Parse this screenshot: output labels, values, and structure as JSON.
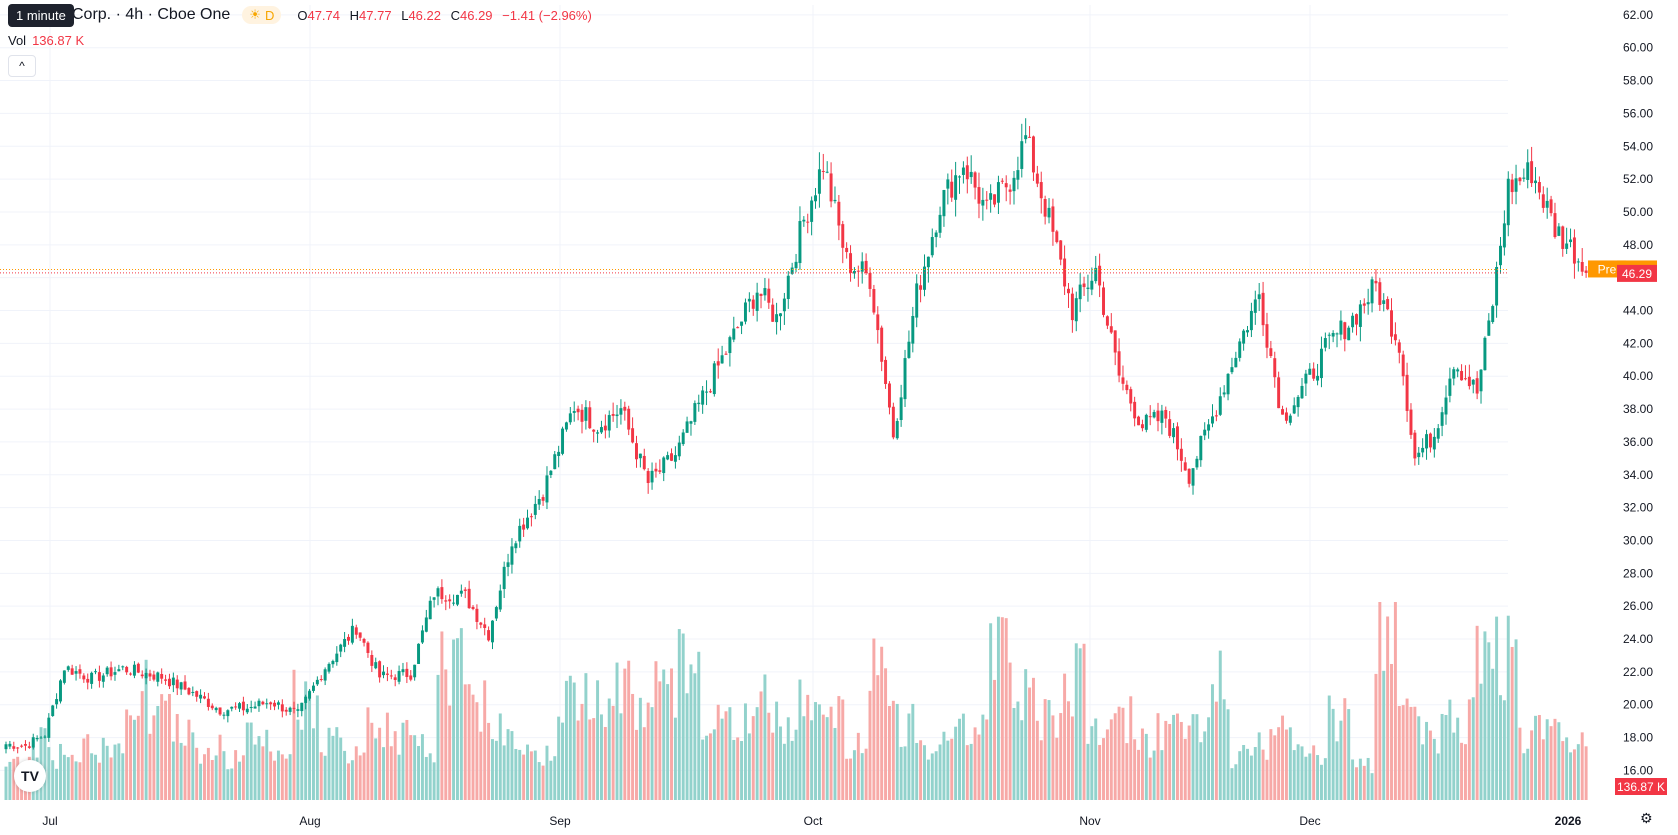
{
  "tooltip": "1 minute",
  "legend": {
    "symbol_fragment": "Corp. · 4h · Cboe One",
    "market_badge": "D",
    "ohlc": [
      {
        "k": "O",
        "v": "47.74"
      },
      {
        "k": "H",
        "v": "47.77"
      },
      {
        "k": "L",
        "v": "46.22"
      },
      {
        "k": "C",
        "v": "46.29"
      }
    ],
    "change": "−1.41 (−2.96%)"
  },
  "volume": {
    "label": "Vol",
    "value": "136.87 K",
    "axis_label": "136.87 K"
  },
  "collapse_icon": "chevron-up-icon",
  "price_axis": {
    "ticks": [
      "62.00",
      "60.00",
      "58.00",
      "56.00",
      "54.00",
      "52.00",
      "50.00",
      "48.00",
      "46.00",
      "44.00",
      "42.00",
      "40.00",
      "38.00",
      "36.00",
      "34.00",
      "32.00",
      "30.00",
      "28.00",
      "26.00",
      "24.00",
      "22.00",
      "20.00",
      "18.00",
      "16.00"
    ],
    "ylim": [
      14.2,
      62.6
    ]
  },
  "time_axis": [
    "Jul",
    "Aug",
    "Sep",
    "Oct",
    "Nov",
    "Dec",
    "2026"
  ],
  "pre_market": {
    "label": "Pre",
    "value": "46.50"
  },
  "last_price": "46.29",
  "colors": {
    "up": "#089981",
    "down": "#f23645",
    "vol_up": "#92d2cc",
    "vol_down": "#f7a9a7",
    "pre": "#ff9800"
  },
  "chart_data": {
    "type": "candlestick",
    "ylim": [
      14.2,
      62.6
    ],
    "last_close": 46.29,
    "pre_market": 46.5,
    "anchors": [
      [
        0,
        17.6
      ],
      [
        5,
        17.5
      ],
      [
        10,
        18.2
      ],
      [
        15,
        22.3
      ],
      [
        22,
        21.6
      ],
      [
        30,
        22.2
      ],
      [
        40,
        21.7
      ],
      [
        48,
        20.7
      ],
      [
        55,
        19.7
      ],
      [
        62,
        19.8
      ],
      [
        68,
        20.2
      ],
      [
        75,
        19.4
      ],
      [
        82,
        22.3
      ],
      [
        90,
        24.7
      ],
      [
        96,
        21.7
      ],
      [
        104,
        21.9
      ],
      [
        110,
        26.8
      ],
      [
        118,
        26.6
      ],
      [
        124,
        24.3
      ],
      [
        130,
        30.0
      ],
      [
        138,
        33.0
      ],
      [
        146,
        38.2
      ],
      [
        152,
        37.0
      ],
      [
        158,
        38.0
      ],
      [
        165,
        33.5
      ],
      [
        172,
        35.2
      ],
      [
        178,
        38.2
      ],
      [
        186,
        42.0
      ],
      [
        193,
        45.3
      ],
      [
        198,
        43.5
      ],
      [
        205,
        49.5
      ],
      [
        210,
        53.0
      ],
      [
        216,
        47.0
      ],
      [
        222,
        46.0
      ],
      [
        228,
        36.5
      ],
      [
        234,
        45.0
      ],
      [
        240,
        50.5
      ],
      [
        246,
        53.0
      ],
      [
        252,
        50.0
      ],
      [
        258,
        52.0
      ],
      [
        262,
        54.5
      ],
      [
        268,
        49.5
      ],
      [
        274,
        44.0
      ],
      [
        280,
        46.5
      ],
      [
        286,
        40.0
      ],
      [
        292,
        37.0
      ],
      [
        298,
        37.5
      ],
      [
        304,
        34.0
      ],
      [
        310,
        37.5
      ],
      [
        316,
        41.5
      ],
      [
        322,
        45.0
      ],
      [
        328,
        37.5
      ],
      [
        334,
        39.5
      ],
      [
        340,
        42.0
      ],
      [
        346,
        43.5
      ],
      [
        352,
        45.5
      ],
      [
        358,
        42.0
      ],
      [
        362,
        35.0
      ],
      [
        367,
        36.5
      ],
      [
        372,
        41.0
      ],
      [
        378,
        39.0
      ],
      [
        382,
        44.5
      ],
      [
        386,
        51.5
      ],
      [
        392,
        52.5
      ],
      [
        398,
        49.0
      ],
      [
        403,
        47.6
      ],
      [
        406,
        46.29
      ]
    ],
    "volume_levels": [
      0.18,
      0.3,
      0.22,
      0.28,
      0.25,
      0.62,
      0.48,
      0.36,
      0.27,
      0.2,
      0.33,
      0.25,
      0.58,
      0.3,
      0.22,
      0.4,
      0.35,
      0.27,
      0.8,
      0.57,
      0.4,
      0.32,
      0.25,
      0.55,
      0.62,
      0.74,
      0.5,
      0.62,
      0.78,
      0.46,
      0.42,
      0.55,
      0.46,
      0.6,
      0.52,
      0.28,
      0.75,
      0.42,
      0.3,
      0.46,
      0.38,
      0.9,
      0.63,
      0.48,
      0.7,
      0.35,
      0.44,
      0.3,
      0.38,
      0.42,
      0.66,
      0.22,
      0.3,
      0.4,
      0.25,
      0.48,
      0.18,
      1.0,
      0.52,
      0.36,
      0.45,
      0.77,
      0.82,
      0.37,
      0.34,
      0.28
    ]
  }
}
